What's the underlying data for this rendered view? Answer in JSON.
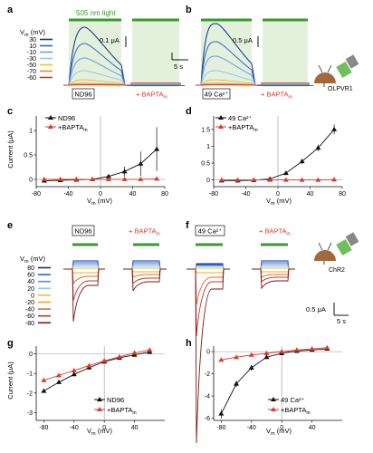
{
  "panels": {
    "a": {
      "letter": "a",
      "light": "505 nm light",
      "vm_label": "V",
      "vm_sub": "m",
      "vm_unit": " (mV)",
      "voltages": [
        "30",
        "10",
        "-10",
        "-30",
        "-50",
        "-70"
      ],
      "legend_tail": "-60",
      "scale": "0.1 μA",
      "time_scale": "5 s",
      "label_left": "ND96",
      "label_right_main": "+ BAPTA",
      "label_right_sub": "in"
    },
    "b": {
      "letter": "b",
      "scale": "0.5 μA",
      "label_left": "49 Ca²⁺",
      "label_right_main": "+ BAPTA",
      "label_right_sub": "in",
      "tag": "OLPVR1"
    },
    "c": {
      "letter": "c",
      "legend_a": "ND96",
      "legend_b": "+BAPTA",
      "legend_b_sub": "in",
      "ylabel": "Current (μA)",
      "xlabel": "V",
      "xlabel_sub": "m",
      "xlabel_tail": " (mV)"
    },
    "d": {
      "letter": "d",
      "legend_a": "49 Ca²⁺",
      "legend_b": "+BAPTA",
      "legend_b_sub": "in",
      "xlabel": "V",
      "xlabel_sub": "m",
      "xlabel_tail": " (mV)"
    },
    "e": {
      "letter": "e",
      "vm_label": "V",
      "vm_sub": "m",
      "vm_unit": " (mV)",
      "voltages": [
        "80",
        "60",
        "40",
        "20",
        "0",
        "-20",
        "-40",
        "-60",
        "-80"
      ],
      "label_left": "ND96",
      "label_right_main": "+ BAPTA",
      "label_right_sub": "in"
    },
    "f": {
      "letter": "f",
      "label_left": "49 Ca²⁺",
      "label_right_main": "+ BAPTA",
      "label_right_sub": "in",
      "tag": "ChR2",
      "scale": "0.5 μA",
      "time_scale": "5 s"
    },
    "g": {
      "letter": "g",
      "legend_a": "ND96",
      "legend_b": "+BAPTA",
      "legend_b_sub": "in",
      "ylabel": "Current (μA)",
      "xlabel": "V",
      "xlabel_sub": "m",
      "xlabel_tail": " (mV)"
    },
    "h": {
      "letter": "h",
      "legend_a": "49 Ca²⁺",
      "legend_b": "+BAPTA",
      "legend_b_sub": "in",
      "xlabel": "V",
      "xlabel_sub": "m",
      "xlabel_tail": " (mV)"
    }
  },
  "colors": {
    "light_bar": "#3a9a2e",
    "light_shade": "#e3f1dc",
    "black_series": "#111111",
    "red_series": "#d93a2b",
    "trace_palette_a": [
      "#0a2f8f",
      "#2d63c9",
      "#6a9ee3",
      "#9dc2ea",
      "#e9c03a",
      "#e58a2b",
      "#c0392b"
    ],
    "trace_palette_e": [
      "#0a2f8f",
      "#2d63c9",
      "#5b8fdc",
      "#9dc2ea",
      "#e9c03a",
      "#f0a830",
      "#e26a2c",
      "#c0392b",
      "#7a1a12"
    ]
  },
  "chart_data": [
    {
      "panel": "c",
      "type": "line",
      "xlim": [
        -80,
        80
      ],
      "ylim": [
        -0.15,
        1.3
      ],
      "xticks": [
        -80,
        -40,
        0,
        40,
        80
      ],
      "yticks": [
        0,
        0.5,
        1
      ],
      "series": [
        {
          "name": "ND96",
          "x": [
            -70,
            -50,
            -30,
            -10,
            10,
            30,
            50,
            70
          ],
          "y": [
            -0.03,
            -0.02,
            -0.01,
            0.0,
            0.06,
            0.16,
            0.32,
            0.62
          ],
          "err": [
            0.01,
            0.01,
            0.01,
            0.01,
            0.03,
            0.1,
            0.25,
            0.45
          ]
        },
        {
          "name": "+BAPTAin",
          "x": [
            -70,
            -50,
            -30,
            -10,
            10,
            30,
            50,
            70
          ],
          "y": [
            0,
            0,
            0,
            0,
            0,
            0,
            0,
            0.01
          ]
        }
      ]
    },
    {
      "panel": "d",
      "type": "line",
      "xlim": [
        -80,
        80
      ],
      "ylim": [
        -0.2,
        1.9
      ],
      "xticks": [
        -80,
        -40,
        0,
        40,
        80
      ],
      "yticks": [
        0,
        0.5,
        1,
        1.5
      ],
      "series": [
        {
          "name": "49 Ca2+",
          "x": [
            -70,
            -50,
            -30,
            -10,
            10,
            30,
            50,
            70
          ],
          "y": [
            -0.02,
            -0.02,
            -0.01,
            0.03,
            0.2,
            0.55,
            0.95,
            1.5
          ],
          "err": [
            0.01,
            0.01,
            0.01,
            0.02,
            0.05,
            0.08,
            0.1,
            0.15
          ]
        },
        {
          "name": "+BAPTAin",
          "x": [
            -70,
            -50,
            -30,
            -10,
            10,
            30,
            50,
            70
          ],
          "y": [
            0,
            0,
            0,
            0,
            0,
            0,
            0,
            0.01
          ]
        }
      ]
    },
    {
      "panel": "g",
      "type": "line",
      "xlim": [
        -90,
        80
      ],
      "ylim": [
        -3.4,
        0.4
      ],
      "xticks": [
        -80,
        -40,
        0,
        40
      ],
      "yticks": [
        -3,
        -2,
        -1,
        0
      ],
      "series": [
        {
          "name": "ND96",
          "x": [
            -80,
            -60,
            -40,
            -20,
            0,
            20,
            40,
            60
          ],
          "y": [
            -1.9,
            -1.45,
            -1.05,
            -0.7,
            -0.4,
            -0.2,
            -0.05,
            0.1
          ]
        },
        {
          "name": "+BAPTAin",
          "x": [
            -80,
            -60,
            -40,
            -20,
            0,
            20,
            40,
            60
          ],
          "y": [
            -1.35,
            -1.1,
            -0.85,
            -0.6,
            -0.35,
            -0.15,
            0.05,
            0.2
          ]
        }
      ]
    },
    {
      "panel": "h",
      "type": "line",
      "xlim": [
        -90,
        80
      ],
      "ylim": [
        -6.2,
        0.5
      ],
      "xticks": [
        -80,
        -40,
        0,
        40
      ],
      "yticks": [
        -6,
        -4,
        -2,
        0
      ],
      "series": [
        {
          "name": "49 Ca2+",
          "x": [
            -80,
            -60,
            -40,
            -20,
            0,
            20,
            40,
            60
          ],
          "y": [
            -5.6,
            -2.9,
            -1.45,
            -0.5,
            -0.15,
            0.05,
            0.15,
            0.25
          ],
          "err": [
            0.4,
            0.3,
            0.25,
            0.1,
            0.05,
            0.05,
            0.05,
            0.05
          ]
        },
        {
          "name": "+BAPTAin",
          "x": [
            -80,
            -60,
            -40,
            -20,
            0,
            20,
            40,
            60
          ],
          "y": [
            -0.75,
            -0.5,
            -0.3,
            -0.15,
            0.0,
            0.15,
            0.25,
            0.35
          ]
        }
      ]
    }
  ]
}
